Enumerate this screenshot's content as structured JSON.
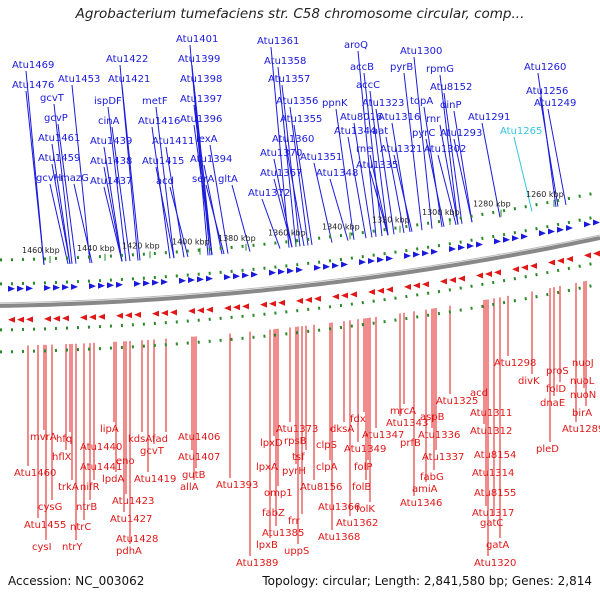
{
  "title": "Agrobacterium tumefaciens str. C58 chromosome circular, comp...",
  "footer": {
    "accession": "Accession: NC_003062",
    "summary": "Topology: circular; Length: 2,841,580 bp; Genes: 2,814"
  },
  "colors": {
    "top_strand": "#1a1adc",
    "bottom_strand": "#e01818",
    "highlight": "#35c3e0",
    "tick": "#2a8a2a",
    "backbone": "#888888"
  },
  "ticks": [
    "1460 kbp",
    "1440 kbp",
    "1420 kbp",
    "1400 kbp",
    "1380 kbp",
    "1360 kbp",
    "1340 kbp",
    "1320 kbp",
    "1300 kbp",
    "1280 kbp",
    "1260 kbp"
  ],
  "top_genes": [
    {
      "name": "Atu1469"
    },
    {
      "name": "Atu1476"
    },
    {
      "name": "gcvT"
    },
    {
      "name": "Atu1453"
    },
    {
      "name": "gcvP"
    },
    {
      "name": "Atu1461"
    },
    {
      "name": "Atu1459"
    },
    {
      "name": "gcvH"
    },
    {
      "name": "mazG"
    },
    {
      "name": "ispDF"
    },
    {
      "name": "cinA"
    },
    {
      "name": "Atu1439"
    },
    {
      "name": "Atu1438"
    },
    {
      "name": "Atu1437"
    },
    {
      "name": "Atu1422"
    },
    {
      "name": "Atu1421"
    },
    {
      "name": "metF"
    },
    {
      "name": "Atu1416"
    },
    {
      "name": "Atu1411"
    },
    {
      "name": "Atu1415"
    },
    {
      "name": "acd"
    },
    {
      "name": "Atu1401"
    },
    {
      "name": "Atu1399"
    },
    {
      "name": "Atu1398"
    },
    {
      "name": "Atu1397"
    },
    {
      "name": "Atu1396"
    },
    {
      "name": "lexA"
    },
    {
      "name": "Atu1394"
    },
    {
      "name": "serA"
    },
    {
      "name": "gltA"
    },
    {
      "name": "Atu1361"
    },
    {
      "name": "Atu1358"
    },
    {
      "name": "Atu1357"
    },
    {
      "name": "Atu1356"
    },
    {
      "name": "Atu1355"
    },
    {
      "name": "Atu1360"
    },
    {
      "name": "Atu1370"
    },
    {
      "name": "Atu1351"
    },
    {
      "name": "Atu1367"
    },
    {
      "name": "Atu1348"
    },
    {
      "name": "Atu1372"
    },
    {
      "name": "ppnK"
    },
    {
      "name": "Atu1344"
    },
    {
      "name": "rne"
    },
    {
      "name": "aroQ"
    },
    {
      "name": "accB"
    },
    {
      "name": "accC"
    },
    {
      "name": "Atu8016"
    },
    {
      "name": "Atu1323"
    },
    {
      "name": "aat"
    },
    {
      "name": "Atu1335"
    },
    {
      "name": "Atu1300"
    },
    {
      "name": "pyrB"
    },
    {
      "name": "rpmG"
    },
    {
      "name": "Atu8152"
    },
    {
      "name": "Atu1316"
    },
    {
      "name": "topA"
    },
    {
      "name": "Atu1321"
    },
    {
      "name": "rnr"
    },
    {
      "name": "dinP"
    },
    {
      "name": "pyrC"
    },
    {
      "name": "Atu1293"
    },
    {
      "name": "Atu1291"
    },
    {
      "name": "Atu1302"
    },
    {
      "name": "Atu1260"
    },
    {
      "name": "Atu1256"
    },
    {
      "name": "Atu1249"
    },
    {
      "name": "Atu1265"
    }
  ],
  "bottom_genes": [
    {
      "name": "mvrA"
    },
    {
      "name": "hfq"
    },
    {
      "name": "Atu1460"
    },
    {
      "name": "hflX"
    },
    {
      "name": "cysG"
    },
    {
      "name": "trkA"
    },
    {
      "name": "Atu1455"
    },
    {
      "name": "cysI"
    },
    {
      "name": "ntrY"
    },
    {
      "name": "ntrC"
    },
    {
      "name": "ntrB"
    },
    {
      "name": "nifR"
    },
    {
      "name": "Atu1441"
    },
    {
      "name": "Atu1440"
    },
    {
      "name": "lipA"
    },
    {
      "name": "lpdA"
    },
    {
      "name": "eno"
    },
    {
      "name": "Atu1423"
    },
    {
      "name": "Atu1427"
    },
    {
      "name": "Atu1428"
    },
    {
      "name": "pdhA"
    },
    {
      "name": "kdsA"
    },
    {
      "name": "gcvT"
    },
    {
      "name": "Atu1419"
    },
    {
      "name": "fad"
    },
    {
      "name": "Atu1406"
    },
    {
      "name": "Atu1407"
    },
    {
      "name": "gutB"
    },
    {
      "name": "allA"
    },
    {
      "name": "Atu1393"
    },
    {
      "name": "Atu1389"
    },
    {
      "name": "lpxD"
    },
    {
      "name": "lpxA"
    },
    {
      "name": "omp1"
    },
    {
      "name": "fabZ"
    },
    {
      "name": "Atu1385"
    },
    {
      "name": "lpxB"
    },
    {
      "name": "Atu1373"
    },
    {
      "name": "rpsB"
    },
    {
      "name": "tsf"
    },
    {
      "name": "pyrH"
    },
    {
      "name": "frr"
    },
    {
      "name": "uppS"
    },
    {
      "name": "clpS"
    },
    {
      "name": "clpA"
    },
    {
      "name": "Atu8156"
    },
    {
      "name": "Atu1366"
    },
    {
      "name": "Atu1362"
    },
    {
      "name": "Atu1368"
    },
    {
      "name": "dksA"
    },
    {
      "name": "Atu1349"
    },
    {
      "name": "fdx"
    },
    {
      "name": "folP"
    },
    {
      "name": "folB"
    },
    {
      "name": "folK"
    },
    {
      "name": "mrcA"
    },
    {
      "name": "Atu1343"
    },
    {
      "name": "Atu1347"
    },
    {
      "name": "prfB"
    },
    {
      "name": "Atu1346"
    },
    {
      "name": "aspB"
    },
    {
      "name": "Atu1336"
    },
    {
      "name": "fabG"
    },
    {
      "name": "Atu1337"
    },
    {
      "name": "amiA"
    },
    {
      "name": "Atu1325"
    },
    {
      "name": "acd"
    },
    {
      "name": "Atu1311"
    },
    {
      "name": "Atu1312"
    },
    {
      "name": "Atu8154"
    },
    {
      "name": "Atu1314"
    },
    {
      "name": "Atu8155"
    },
    {
      "name": "Atu1317"
    },
    {
      "name": "gatC"
    },
    {
      "name": "gatA"
    },
    {
      "name": "Atu1320"
    },
    {
      "name": "Atu1298"
    },
    {
      "name": "divK"
    },
    {
      "name": "pleD"
    },
    {
      "name": "proS"
    },
    {
      "name": "folD"
    },
    {
      "name": "dnaE"
    },
    {
      "name": "nuoJ"
    },
    {
      "name": "nuoL"
    },
    {
      "name": "nuoN"
    },
    {
      "name": "birA"
    },
    {
      "name": "Atu1289"
    }
  ]
}
